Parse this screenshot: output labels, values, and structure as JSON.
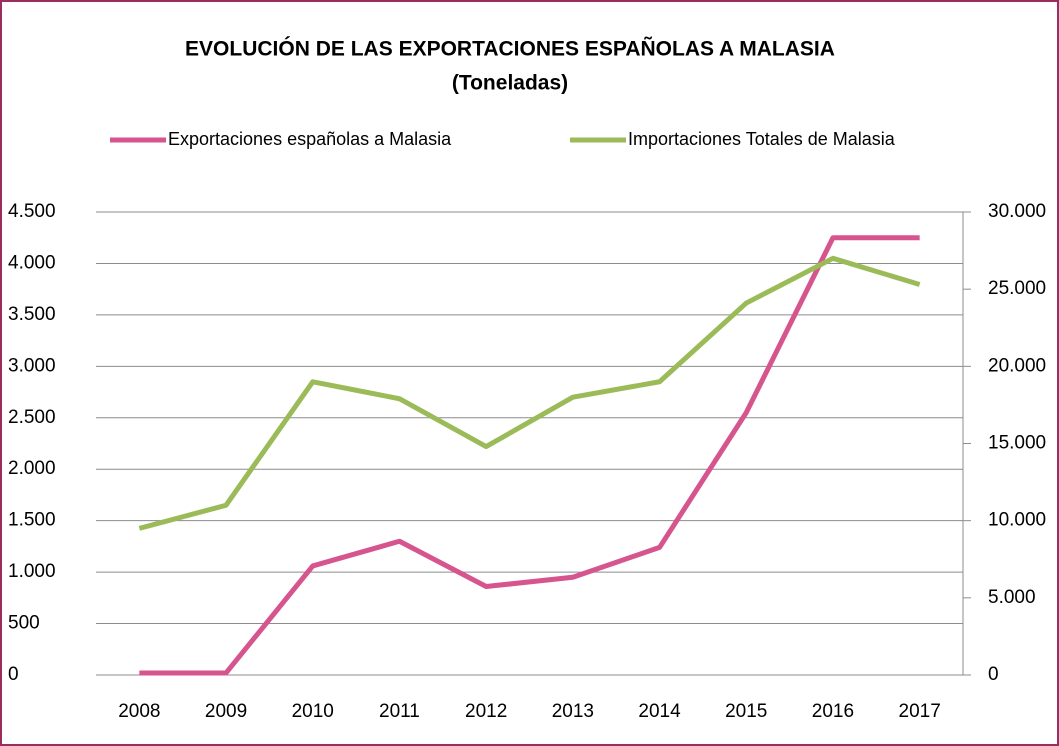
{
  "chart_data": {
    "type": "line",
    "title": "EVOLUCIÓN DE LAS EXPORTACIONES ESPAÑOLAS A MALASIA",
    "subtitle": "(Toneladas)",
    "categories": [
      "2008",
      "2009",
      "2010",
      "2011",
      "2012",
      "2013",
      "2014",
      "2015",
      "2016",
      "2017"
    ],
    "series": [
      {
        "name": "Exportaciones españolas a Malasia",
        "color": "#d6558f",
        "values": [
          20,
          20,
          1060,
          1300,
          860,
          950,
          1240,
          2550,
          4250,
          4250
        ]
      },
      {
        "name": "Importaciones Totales de Malasia",
        "color": "#9bbb59",
        "axis": "y2",
        "values": [
          9500,
          11000,
          19000,
          17900,
          14800,
          18000,
          19000,
          24100,
          27000,
          25300
        ]
      }
    ],
    "ylim": [
      0,
      4500
    ],
    "yticks": [
      0,
      500,
      {
        "value": 1000,
        "label": "1.000"
      },
      {
        "value": 1500,
        "label": "1.500"
      },
      {
        "value": 2000,
        "label": "2.000"
      },
      {
        "value": 2500,
        "label": "2.500"
      },
      {
        "value": 3000,
        "label": "3.000"
      },
      {
        "value": 3500,
        "label": "3.500"
      },
      {
        "value": 4000,
        "label": "4.000"
      },
      {
        "value": 4500,
        "label": "4.500"
      }
    ],
    "y2lim": [
      0,
      30000
    ],
    "y2ticks": [
      0,
      {
        "value": 5000,
        "label": "5.000"
      },
      {
        "value": 10000,
        "label": "10.000"
      },
      {
        "value": 15000,
        "label": "15.000"
      },
      {
        "value": 20000,
        "label": "20.000"
      },
      {
        "value": 25000,
        "label": "25.000"
      },
      {
        "value": 30000,
        "label": "30.000"
      }
    ],
    "grid": true,
    "legend": "top"
  }
}
